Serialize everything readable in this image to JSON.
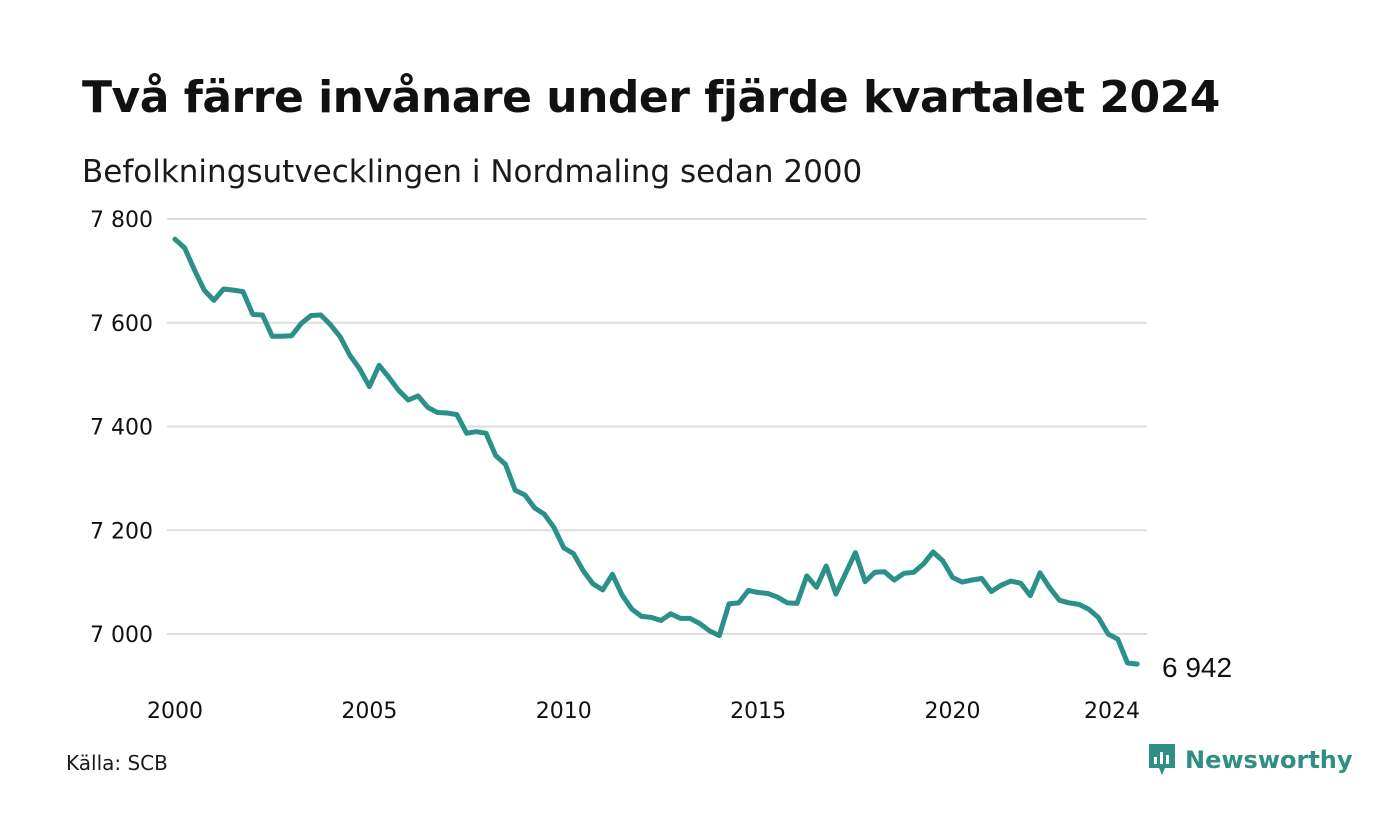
{
  "header": {
    "title": "Två färre invånare under fjärde kvartalet 2024",
    "subtitle": "Befolkningsutvecklingen i Nordmaling sedan 2000"
  },
  "footer": {
    "source": "Källa: SCB",
    "brand": "Newsworthy",
    "brand_icon": "newsworthy-logo-icon"
  },
  "chart_data": {
    "type": "line",
    "title": "Två färre invånare under fjärde kvartalet 2024",
    "subtitle": "Befolkningsutvecklingen i Nordmaling sedan 2000",
    "xlabel": "",
    "ylabel": "",
    "xlim": [
      2000.0,
      2024.95
    ],
    "ylim": [
      6900,
      7800
    ],
    "xticks": [
      2000,
      2005,
      2010,
      2015,
      2020,
      2024
    ],
    "yticks": [
      7000,
      7200,
      7400,
      7600,
      7800
    ],
    "ytick_labels": [
      "7 000",
      "7 200",
      "7 400",
      "7 600",
      "7 800"
    ],
    "xtick_labels": [
      "2000",
      "2005",
      "2010",
      "2015",
      "2020",
      "2024"
    ],
    "grid": "horizontal",
    "line_color": "#2a9088",
    "end_label": "6 942",
    "series": [
      {
        "values": [
          7761,
          7744,
          7702,
          7663,
          7643,
          7665,
          7663,
          7660,
          7616,
          7615,
          7574,
          7574,
          7575,
          7599,
          7614,
          7615,
          7596,
          7573,
          7537,
          7511,
          7477,
          7518,
          7495,
          7470,
          7451,
          7459,
          7437,
          7427,
          7426,
          7423,
          7387,
          7390,
          7387,
          7344,
          7327,
          7277,
          7268,
          7243,
          7231,
          7205,
          7166,
          7155,
          7122,
          7097,
          7085,
          7115,
          7075,
          7048,
          7034,
          7032,
          7026,
          7039,
          7030,
          7030,
          7020,
          7006,
          6997,
          7058,
          7060,
          7084,
          7080,
          7078,
          7071,
          7060,
          7059,
          7112,
          7090,
          7131,
          7077,
          7117,
          7157,
          7101,
          7119,
          7120,
          7104,
          7117,
          7119,
          7135,
          7158,
          7141,
          7109,
          7100,
          7104,
          7107,
          7082,
          7094,
          7102,
          7098,
          7074,
          7118,
          7089,
          7065,
          7060,
          7057,
          7048,
          7032,
          7000,
          6990,
          6944,
          6942
        ]
      }
    ],
    "x_start": 2000.0,
    "x_step": 0.25
  }
}
